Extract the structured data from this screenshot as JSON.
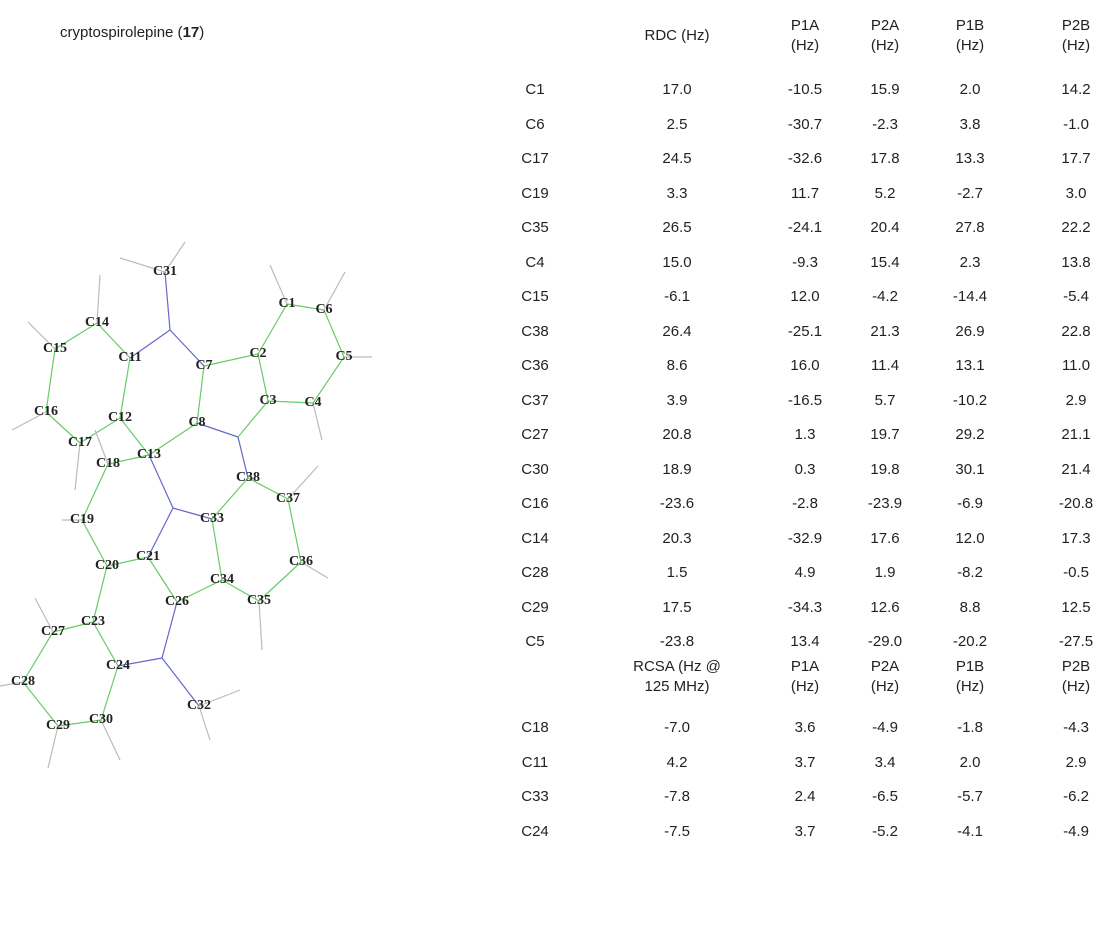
{
  "compound": {
    "name": "cryptospirolepine (",
    "number": "17",
    "suffix": ")"
  },
  "molecule": {
    "atoms": [
      "C31",
      "C14",
      "C15",
      "C11",
      "C7",
      "C2",
      "C1",
      "C6",
      "C5",
      "C3",
      "C4",
      "C16",
      "C17",
      "C12",
      "C8",
      "C18",
      "C13",
      "C38",
      "C37",
      "C19",
      "C33",
      "C36",
      "C20",
      "C21",
      "C34",
      "C26",
      "C35",
      "C27",
      "C23",
      "C24",
      "C28",
      "C32",
      "C29",
      "C30"
    ]
  },
  "rdc_table": {
    "header": [
      "RDC (Hz)",
      "P1A (Hz)",
      "P2A (Hz)",
      "P1B (Hz)",
      "P2B (Hz)"
    ],
    "rows": [
      [
        "C1",
        "17.0",
        "-10.5",
        "15.9",
        "2.0",
        "14.2"
      ],
      [
        "C6",
        "2.5",
        "-30.7",
        "-2.3",
        "3.8",
        "-1.0"
      ],
      [
        "C17",
        "24.5",
        "-32.6",
        "17.8",
        "13.3",
        "17.7"
      ],
      [
        "C19",
        "3.3",
        "11.7",
        "5.2",
        "-2.7",
        "3.0"
      ],
      [
        "C35",
        "26.5",
        "-24.1",
        "20.4",
        "27.8",
        "22.2"
      ],
      [
        "C4",
        "15.0",
        "-9.3",
        "15.4",
        "2.3",
        "13.8"
      ],
      [
        "C15",
        "-6.1",
        "12.0",
        "-4.2",
        "-14.4",
        "-5.4"
      ],
      [
        "C38",
        "26.4",
        "-25.1",
        "21.3",
        "26.9",
        "22.8"
      ],
      [
        "C36",
        "8.6",
        "16.0",
        "11.4",
        "13.1",
        "11.0"
      ],
      [
        "C37",
        "3.9",
        "-16.5",
        "5.7",
        "-10.2",
        "2.9"
      ],
      [
        "C27",
        "20.8",
        "1.3",
        "19.7",
        "29.2",
        "21.1"
      ],
      [
        "C30",
        "18.9",
        "0.3",
        "19.8",
        "30.1",
        "21.4"
      ],
      [
        "C16",
        "-23.6",
        "-2.8",
        "-23.9",
        "-6.9",
        "-20.8"
      ],
      [
        "C14",
        "20.3",
        "-32.9",
        "17.6",
        "12.0",
        "17.3"
      ],
      [
        "C28",
        "1.5",
        "4.9",
        "1.9",
        "-8.2",
        "-0.5"
      ],
      [
        "C29",
        "17.5",
        "-34.3",
        "12.6",
        "8.8",
        "12.5"
      ],
      [
        "C5",
        "-23.8",
        "13.4",
        "-29.0",
        "-20.2",
        "-27.5"
      ]
    ]
  },
  "rcsa_table": {
    "header": [
      "RCSA (Hz @ 125 MHz)",
      "P1A (Hz)",
      "P2A (Hz)",
      "P1B (Hz)",
      "P2B (Hz)"
    ],
    "rows": [
      [
        "C18",
        "-7.0",
        "3.6",
        "-4.9",
        "-1.8",
        "-4.3"
      ],
      [
        "C11",
        "4.2",
        "3.7",
        "3.4",
        "2.0",
        "2.9"
      ],
      [
        "C33",
        "-7.8",
        "2.4",
        "-6.5",
        "-5.7",
        "-6.2"
      ],
      [
        "C24",
        "-7.5",
        "3.7",
        "-5.2",
        "-4.1",
        "-4.9"
      ]
    ]
  }
}
